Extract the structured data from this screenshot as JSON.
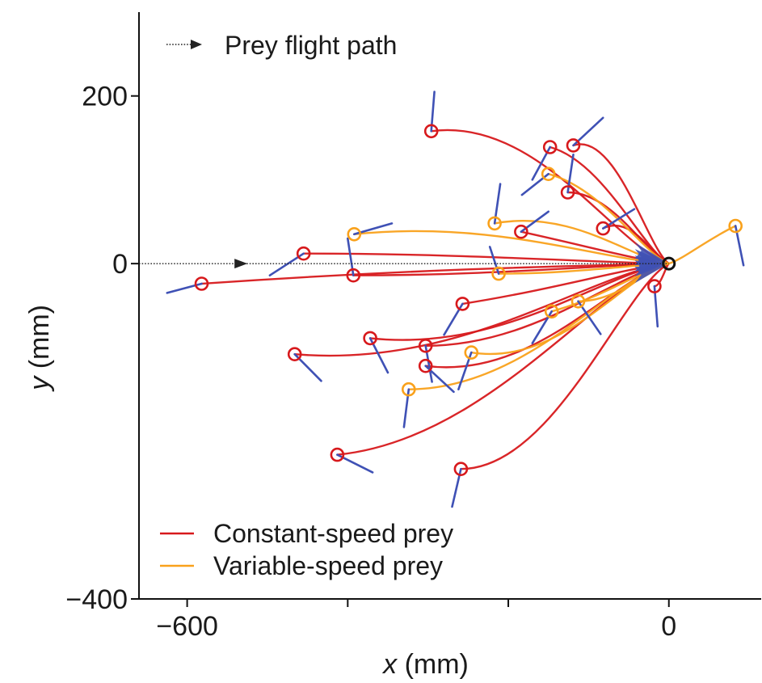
{
  "chart_data": {
    "type": "line",
    "xlabel_var": "x",
    "xlabel_unit": " (mm)",
    "ylabel_var": "y",
    "ylabel_unit": " (mm)",
    "xlim": [
      -660,
      115
    ],
    "ylim": [
      -400,
      300
    ],
    "x_ticks": [
      -600,
      -400,
      -200,
      0
    ],
    "x_tick_labels": [
      "−600",
      "",
      "",
      "0"
    ],
    "y_ticks": [
      200,
      0,
      -400
    ],
    "y_tick_labels": [
      "200",
      "0",
      "−400"
    ],
    "grid": false,
    "legend_top": {
      "label": "Prey flight path",
      "placement": "top-left"
    },
    "legend_bottom": {
      "placement": "bottom-left"
    },
    "colors": {
      "constant": "#d7191c",
      "variable": "#f9a11b",
      "orientation": "#3f51b5",
      "prey_path": "#222222",
      "target": "#111111"
    },
    "prey_path": {
      "y": 0,
      "x_start": -660,
      "x_end": 0,
      "arrow_x": -535
    },
    "target": {
      "x": 0,
      "y": 0
    },
    "series": [
      {
        "name": "Constant-speed prey",
        "key": "constant",
        "trajectories": [
          {
            "start": [
              -582,
              -24
            ],
            "end": [
              0,
              0
            ],
            "tick": [
              [
                -582,
                -24
              ],
              [
                -625,
                -35
              ]
            ]
          },
          {
            "start": [
              -455,
              12
            ],
            "end": [
              0,
              0
            ],
            "tick": [
              [
                -455,
                12
              ],
              [
                -497,
                -14
              ]
            ]
          },
          {
            "start": [
              -466,
              -108
            ],
            "end": [
              0,
              0
            ],
            "tick": [
              [
                -466,
                -108
              ],
              [
                -433,
                -140
              ]
            ]
          },
          {
            "start": [
              -413,
              -228
            ],
            "end": [
              0,
              0
            ],
            "tick": [
              [
                -413,
                -228
              ],
              [
                -369,
                -249
              ]
            ]
          },
          {
            "start": [
              -393,
              -14
            ],
            "end": [
              0,
              0
            ],
            "tick": [
              [
                -393,
                -14
              ],
              [
                -400,
                30
              ]
            ]
          },
          {
            "start": [
              -372,
              -89
            ],
            "end": [
              0,
              0
            ],
            "tick": [
              [
                -372,
                -89
              ],
              [
                -350,
                -130
              ]
            ]
          },
          {
            "start": [
              -296,
              158
            ],
            "end": [
              0,
              0
            ],
            "tick": [
              [
                -296,
                158
              ],
              [
                -292,
                205
              ]
            ]
          },
          {
            "start": [
              -303,
              -98
            ],
            "end": [
              0,
              0
            ],
            "tick": [
              [
                -303,
                -98
              ],
              [
                -295,
                -141
              ]
            ]
          },
          {
            "start": [
              -303,
              -122
            ],
            "end": [
              0,
              0
            ],
            "tick": [
              [
                -303,
                -122
              ],
              [
                -268,
                -153
              ]
            ]
          },
          {
            "start": [
              -257,
              -48
            ],
            "end": [
              0,
              0
            ],
            "tick": [
              [
                -257,
                -48
              ],
              [
                -280,
                -85
              ]
            ]
          },
          {
            "start": [
              -259,
              -245
            ],
            "end": [
              0,
              0
            ],
            "tick": [
              [
                -259,
                -245
              ],
              [
                -270,
                -290
              ]
            ]
          },
          {
            "start": [
              -148,
              139
            ],
            "end": [
              0,
              0
            ],
            "tick": [
              [
                -148,
                139
              ],
              [
                -170,
                100
              ]
            ]
          },
          {
            "start": [
              -119,
              141
            ],
            "end": [
              0,
              0
            ],
            "tick": [
              [
                -119,
                141
              ],
              [
                -82,
                174
              ]
            ]
          },
          {
            "start": [
              -126,
              85
            ],
            "end": [
              0,
              0
            ],
            "tick": [
              [
                -126,
                85
              ],
              [
                -119,
                130
              ]
            ]
          },
          {
            "start": [
              -184,
              38
            ],
            "end": [
              0,
              0
            ],
            "tick": [
              [
                -184,
                38
              ],
              [
                -150,
                62
              ]
            ]
          },
          {
            "start": [
              -82,
              42
            ],
            "end": [
              0,
              0
            ],
            "tick": [
              [
                -82,
                42
              ],
              [
                -43,
                65
              ]
            ]
          },
          {
            "start": [
              -18,
              -27
            ],
            "end": [
              0,
              0
            ],
            "tick": [
              [
                -18,
                -27
              ],
              [
                -14,
                -75
              ]
            ]
          }
        ]
      },
      {
        "name": "Variable-speed prey",
        "key": "variable",
        "trajectories": [
          {
            "start": [
              -392,
              35
            ],
            "end": [
              0,
              0
            ],
            "tick": [
              [
                -392,
                35
              ],
              [
                -345,
                48
              ]
            ]
          },
          {
            "start": [
              -324,
              -150
            ],
            "end": [
              0,
              0
            ],
            "tick": [
              [
                -324,
                -150
              ],
              [
                -330,
                -195
              ]
            ]
          },
          {
            "start": [
              -246,
              -106
            ],
            "end": [
              0,
              0
            ],
            "tick": [
              [
                -246,
                -106
              ],
              [
                -262,
                -150
              ]
            ]
          },
          {
            "start": [
              -217,
              48
            ],
            "end": [
              0,
              0
            ],
            "tick": [
              [
                -217,
                48
              ],
              [
                -210,
                95
              ]
            ]
          },
          {
            "start": [
              -212,
              -12
            ],
            "end": [
              0,
              0
            ],
            "tick": [
              [
                -212,
                -12
              ],
              [
                -223,
                20
              ]
            ]
          },
          {
            "start": [
              -150,
              107
            ],
            "end": [
              0,
              0
            ],
            "tick": [
              [
                -150,
                107
              ],
              [
                -183,
                82
              ]
            ]
          },
          {
            "start": [
              -146,
              -57
            ],
            "end": [
              0,
              0
            ],
            "tick": [
              [
                -146,
                -57
              ],
              [
                -170,
                -95
              ]
            ]
          },
          {
            "start": [
              -113,
              -45
            ],
            "end": [
              0,
              0
            ],
            "tick": [
              [
                -113,
                -45
              ],
              [
                -85,
                -84
              ]
            ]
          },
          {
            "start": [
              83,
              45
            ],
            "end": [
              0,
              0
            ],
            "tick": [
              [
                83,
                45
              ],
              [
                93,
                -2
              ]
            ]
          }
        ]
      }
    ]
  }
}
